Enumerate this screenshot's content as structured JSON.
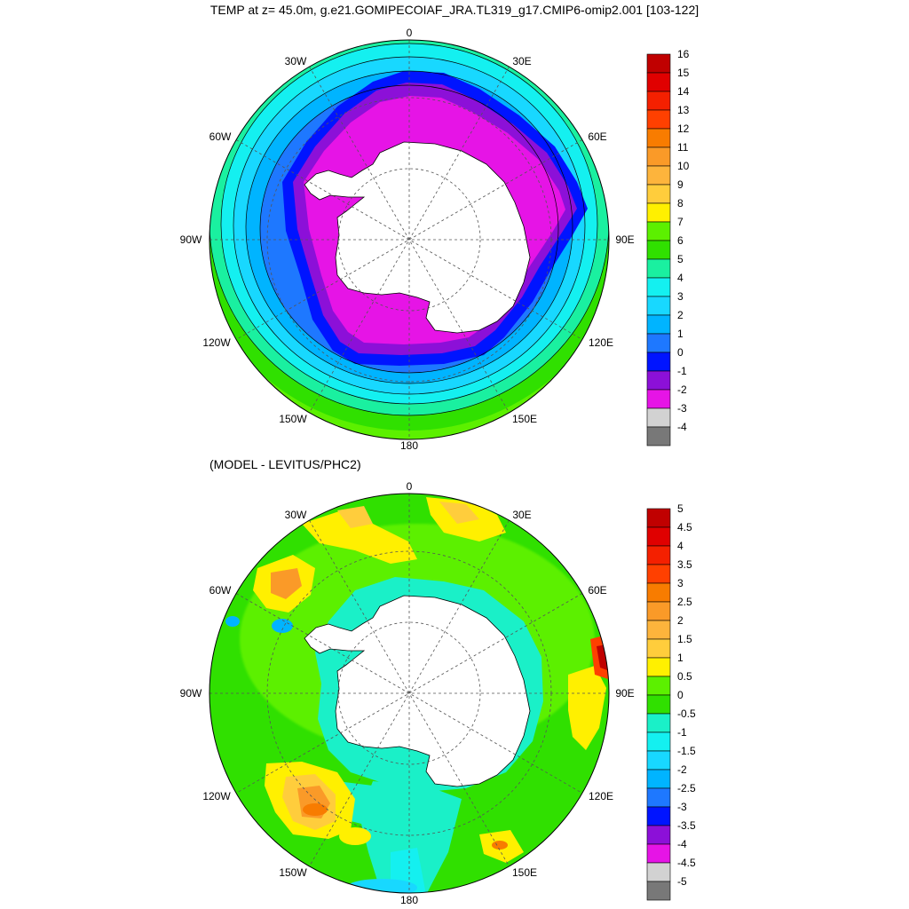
{
  "titles": {
    "main": "TEMP at z=  45.0m, g.e21.GOMIPECOIAF_JRA.TL319_g17.CMIP6-omip2.001 [103-122]",
    "diff": "(MODEL - LEVITUS/PHC2)"
  },
  "longitude_labels": [
    "0",
    "30E",
    "60E",
    "90E",
    "120E",
    "150E",
    "180",
    "150W",
    "120W",
    "90W",
    "60W",
    "30W"
  ],
  "top_map": {
    "colorbar": {
      "labels": [
        "16",
        "15",
        "14",
        "13",
        "12",
        "11",
        "10",
        "9",
        "8",
        "7",
        "6",
        "5",
        "4",
        "3",
        "2",
        "1",
        "0",
        "-1",
        "-2",
        "-3",
        "-4"
      ],
      "colors": [
        "#c00000",
        "#e00000",
        "#f42000",
        "#ff4000",
        "#f87c00",
        "#fa9a28",
        "#fdb43c",
        "#ffcd3c",
        "#fff000",
        "#5cf000",
        "#30e000",
        "#1af0a0",
        "#14f0f0",
        "#18d8ff",
        "#00b4ff",
        "#1e78ff",
        "#0014ff",
        "#8c10d8",
        "#e614e6",
        "#d2d2d2",
        "#787878"
      ]
    }
  },
  "diff_map": {
    "colorbar": {
      "labels": [
        "5",
        "4.5",
        "4",
        "3.5",
        "3",
        "2.5",
        "2",
        "1.5",
        "1",
        "0.5",
        "0",
        "-0.5",
        "-1",
        "-1.5",
        "-2",
        "-2.5",
        "-3",
        "-3.5",
        "-4",
        "-4.5",
        "-5"
      ],
      "colors": [
        "#c00000",
        "#e00000",
        "#f42000",
        "#ff4000",
        "#f87c00",
        "#fa9a28",
        "#fdb43c",
        "#ffcd3c",
        "#fff000",
        "#5cf000",
        "#30e000",
        "#1af0c8",
        "#14f0f0",
        "#18d8ff",
        "#00b4ff",
        "#1e78ff",
        "#0014ff",
        "#8c10d8",
        "#e614e6",
        "#d2d2d2",
        "#787878"
      ]
    }
  }
}
